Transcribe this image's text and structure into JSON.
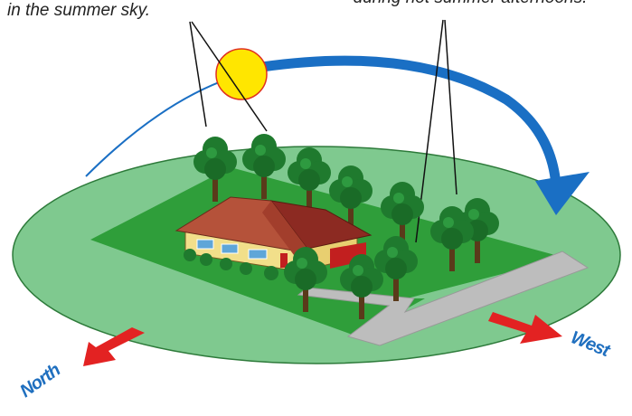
{
  "captions": {
    "left": "in the summer sky.",
    "right": "during hot summer afternoons."
  },
  "directions": {
    "north": "North",
    "west": "West"
  }
}
